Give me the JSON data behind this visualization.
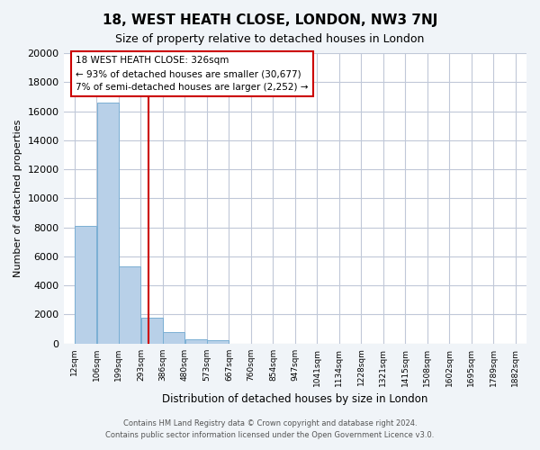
{
  "title": "18, WEST HEATH CLOSE, LONDON, NW3 7NJ",
  "subtitle": "Size of property relative to detached houses in London",
  "xlabel": "Distribution of detached houses by size in London",
  "ylabel": "Number of detached properties",
  "bar_color": "#b8d0e8",
  "bar_edge_color": "#7aafd4",
  "background_color": "#f0f4f8",
  "plot_bg_color": "#ffffff",
  "grid_color": "#c0c8d8",
  "bin_labels": [
    "12sqm",
    "106sqm",
    "199sqm",
    "293sqm",
    "386sqm",
    "480sqm",
    "573sqm",
    "667sqm",
    "760sqm",
    "854sqm",
    "947sqm",
    "1041sqm",
    "1134sqm",
    "1228sqm",
    "1321sqm",
    "1415sqm",
    "1508sqm",
    "1602sqm",
    "1695sqm",
    "1789sqm",
    "1882sqm"
  ],
  "bar_values": [
    8100,
    16600,
    5300,
    1800,
    800,
    300,
    250,
    0,
    0,
    0,
    0,
    0,
    0,
    0,
    0,
    0,
    0,
    0,
    0,
    0
  ],
  "ylim": [
    0,
    20000
  ],
  "yticks": [
    0,
    2000,
    4000,
    6000,
    8000,
    10000,
    12000,
    14000,
    16000,
    18000,
    20000
  ],
  "property_size": 326,
  "property_label": "18 WEST HEATH CLOSE: 326sqm",
  "annotation_line1": "← 93% of detached houses are smaller (30,677)",
  "annotation_line2": "7% of semi-detached houses are larger (2,252) →",
  "vline_color": "#cc0000",
  "annotation_box_edge": "#cc0000",
  "bin_edges": [
    12,
    106,
    199,
    293,
    386,
    480,
    573,
    667,
    760,
    854,
    947,
    1041,
    1134,
    1228,
    1321,
    1415,
    1508,
    1602,
    1695,
    1789,
    1882
  ],
  "footer_line1": "Contains HM Land Registry data © Crown copyright and database right 2024.",
  "footer_line2": "Contains public sector information licensed under the Open Government Licence v3.0."
}
